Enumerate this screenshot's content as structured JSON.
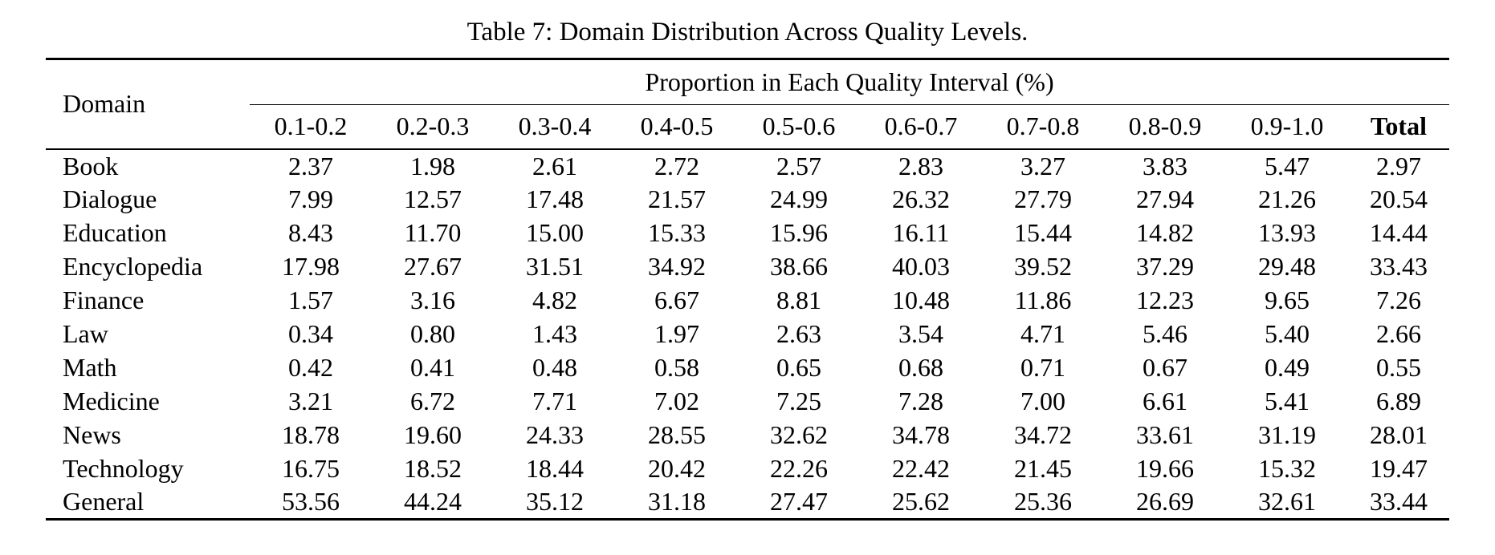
{
  "caption": "Table 7: Domain Distribution Across Quality Levels.",
  "colors": {
    "text": "#000000",
    "background": "#ffffff",
    "rule": "#000000"
  },
  "table": {
    "domain_header": "Domain",
    "span_header": "Proportion in Each Quality Interval (%)",
    "interval_headers": [
      "0.1-0.2",
      "0.2-0.3",
      "0.3-0.4",
      "0.4-0.5",
      "0.5-0.6",
      "0.6-0.7",
      "0.7-0.8",
      "0.8-0.9",
      "0.9-1.0"
    ],
    "total_header": "Total",
    "rows": [
      {
        "domain": "Book",
        "values": [
          "2.37",
          "1.98",
          "2.61",
          "2.72",
          "2.57",
          "2.83",
          "3.27",
          "3.83",
          "5.47"
        ],
        "total": "2.97"
      },
      {
        "domain": "Dialogue",
        "values": [
          "7.99",
          "12.57",
          "17.48",
          "21.57",
          "24.99",
          "26.32",
          "27.79",
          "27.94",
          "21.26"
        ],
        "total": "20.54"
      },
      {
        "domain": "Education",
        "values": [
          "8.43",
          "11.70",
          "15.00",
          "15.33",
          "15.96",
          "16.11",
          "15.44",
          "14.82",
          "13.93"
        ],
        "total": "14.44"
      },
      {
        "domain": "Encyclopedia",
        "values": [
          "17.98",
          "27.67",
          "31.51",
          "34.92",
          "38.66",
          "40.03",
          "39.52",
          "37.29",
          "29.48"
        ],
        "total": "33.43"
      },
      {
        "domain": "Finance",
        "values": [
          "1.57",
          "3.16",
          "4.82",
          "6.67",
          "8.81",
          "10.48",
          "11.86",
          "12.23",
          "9.65"
        ],
        "total": "7.26"
      },
      {
        "domain": "Law",
        "values": [
          "0.34",
          "0.80",
          "1.43",
          "1.97",
          "2.63",
          "3.54",
          "4.71",
          "5.46",
          "5.40"
        ],
        "total": "2.66"
      },
      {
        "domain": "Math",
        "values": [
          "0.42",
          "0.41",
          "0.48",
          "0.58",
          "0.65",
          "0.68",
          "0.71",
          "0.67",
          "0.49"
        ],
        "total": "0.55"
      },
      {
        "domain": "Medicine",
        "values": [
          "3.21",
          "6.72",
          "7.71",
          "7.02",
          "7.25",
          "7.28",
          "7.00",
          "6.61",
          "5.41"
        ],
        "total": "6.89"
      },
      {
        "domain": "News",
        "values": [
          "18.78",
          "19.60",
          "24.33",
          "28.55",
          "32.62",
          "34.78",
          "34.72",
          "33.61",
          "31.19"
        ],
        "total": "28.01"
      },
      {
        "domain": "Technology",
        "values": [
          "16.75",
          "18.52",
          "18.44",
          "20.42",
          "22.26",
          "22.42",
          "21.45",
          "19.66",
          "15.32"
        ],
        "total": "19.47"
      },
      {
        "domain": "General",
        "values": [
          "53.56",
          "44.24",
          "35.12",
          "31.18",
          "27.47",
          "25.62",
          "25.36",
          "26.69",
          "32.61"
        ],
        "total": "33.44"
      }
    ]
  }
}
